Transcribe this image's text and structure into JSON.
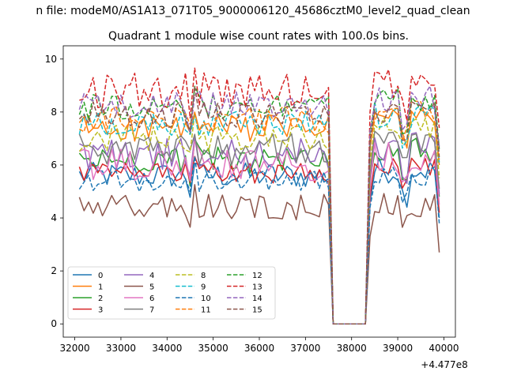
{
  "figure": {
    "suptitle": "n file: modeM0/AS1A13_071T05_9000006120_45686cztM0_level2_quad_clean",
    "title": "Quadrant 1 module wise count rates with 100.0s bins.",
    "x_offset_label": "+4.477e8"
  },
  "chart_data": {
    "type": "line",
    "title": "Quadrant 1 module wise count rates with 100.0s bins.",
    "xlabel": "",
    "ylabel": "",
    "x_offset": 447700000,
    "xlim": [
      31750,
      40250
    ],
    "ylim": [
      -0.5,
      10.5
    ],
    "xticks": [
      32000,
      33000,
      34000,
      35000,
      36000,
      37000,
      38000,
      39000,
      40000
    ],
    "yticks": [
      0,
      2,
      4,
      6,
      8,
      10
    ],
    "xtick_labels": [
      "32000",
      "33000",
      "34000",
      "35000",
      "36000",
      "37000",
      "38000",
      "39000",
      "40000"
    ],
    "ytick_labels": [
      "0",
      "2",
      "4",
      "6",
      "8",
      "10"
    ],
    "grid": false,
    "legend_placement": "lower-left",
    "legend_columns": 4,
    "data_ranges": [
      [
        32100,
        37500
      ],
      [
        37600,
        38300
      ],
      [
        38400,
        39900
      ]
    ],
    "series": [
      {
        "name": "0",
        "color": "#1f77b4",
        "dash": "solid",
        "mean_before": 5.6,
        "mean_after": 5.8,
        "jitter": 0.25
      },
      {
        "name": "1",
        "color": "#ff7f0e",
        "dash": "solid",
        "mean_before": 7.4,
        "mean_after": 7.8,
        "jitter": 0.25
      },
      {
        "name": "2",
        "color": "#2ca02c",
        "dash": "solid",
        "mean_before": 6.2,
        "mean_after": 6.6,
        "jitter": 0.25
      },
      {
        "name": "3",
        "color": "#d62728",
        "dash": "solid",
        "mean_before": 5.7,
        "mean_after": 6.0,
        "jitter": 0.2
      },
      {
        "name": "4",
        "color": "#9467bd",
        "dash": "solid",
        "mean_before": 6.4,
        "mean_after": 6.7,
        "jitter": 0.3
      },
      {
        "name": "5",
        "color": "#8c564b",
        "dash": "solid",
        "mean_before": 4.4,
        "mean_after": 4.5,
        "jitter": 0.25
      },
      {
        "name": "6",
        "color": "#e377c2",
        "dash": "solid",
        "mean_before": 6.0,
        "mean_after": 6.3,
        "jitter": 0.3
      },
      {
        "name": "7",
        "color": "#7f7f7f",
        "dash": "solid",
        "mean_before": 6.6,
        "mean_after": 6.9,
        "jitter": 0.3
      },
      {
        "name": "8",
        "color": "#bcbd22",
        "dash": "dashed",
        "mean_before": 7.0,
        "mean_after": 7.3,
        "jitter": 0.25
      },
      {
        "name": "9",
        "color": "#17becf",
        "dash": "dashed",
        "mean_before": 7.6,
        "mean_after": 7.9,
        "jitter": 0.25
      },
      {
        "name": "10",
        "color": "#1f77b4",
        "dash": "dashed",
        "mean_before": 5.4,
        "mean_after": 5.6,
        "jitter": 0.2
      },
      {
        "name": "11",
        "color": "#ff7f0e",
        "dash": "dashed",
        "mean_before": 7.7,
        "mean_after": 8.0,
        "jitter": 0.25
      },
      {
        "name": "12",
        "color": "#2ca02c",
        "dash": "dashed",
        "mean_before": 8.2,
        "mean_after": 8.4,
        "jitter": 0.25
      },
      {
        "name": "13",
        "color": "#d62728",
        "dash": "dashed",
        "mean_before": 8.8,
        "mean_after": 9.2,
        "jitter": 0.35
      },
      {
        "name": "14",
        "color": "#9467bd",
        "dash": "dashed",
        "mean_before": 8.3,
        "mean_after": 8.5,
        "jitter": 0.25
      },
      {
        "name": "15",
        "color": "#8c564b",
        "dash": "dashed",
        "mean_before": 7.9,
        "mean_after": 8.1,
        "jitter": 0.25
      }
    ]
  }
}
